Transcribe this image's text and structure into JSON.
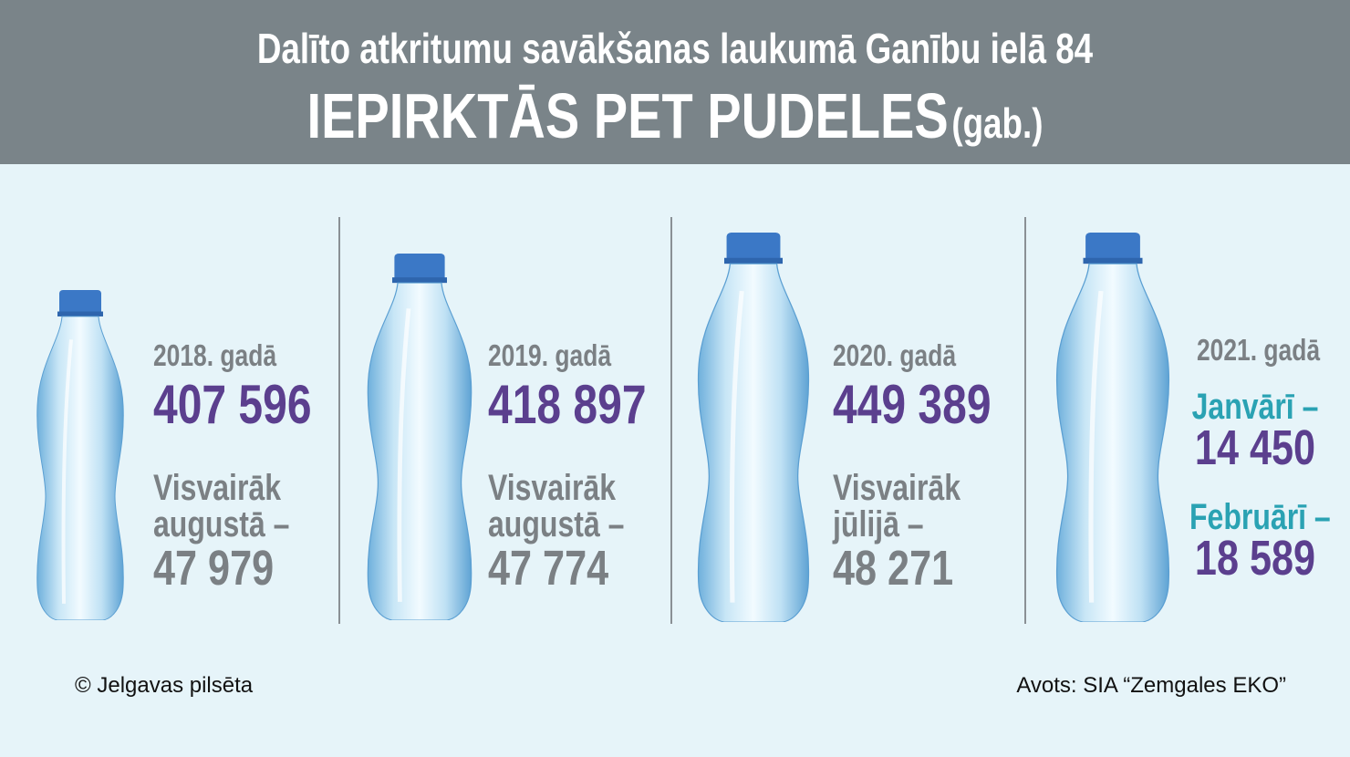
{
  "header": {
    "subtitle": "Dalīto atkritumu savākšanas laukumā Ganību ielā 84",
    "title": "IEPIRKTĀS PET PUDELES",
    "unit": "(gab.)"
  },
  "panels": [
    {
      "year": "2018. gadā",
      "total": "407 596",
      "note": [
        "Visvairāk",
        "augustā –"
      ],
      "peak": "47 979"
    },
    {
      "year": "2019. gadā",
      "total": "418 897",
      "note": [
        "Visvairāk",
        "augustā –"
      ],
      "peak": "47 774"
    },
    {
      "year": "2020. gadā",
      "total": "449 389",
      "note": [
        "Visvairāk",
        "jūlijā –"
      ],
      "peak": "48 271"
    },
    {
      "year": "2021. gadā",
      "months": [
        {
          "label": "Janvārī –",
          "value": "14 450"
        },
        {
          "label": "Februārī –",
          "value": "18 589"
        }
      ]
    }
  ],
  "footer": {
    "copyright": "© Jelgavas pilsēta",
    "source": "Avots: SIA “Zemgales EKO”"
  }
}
